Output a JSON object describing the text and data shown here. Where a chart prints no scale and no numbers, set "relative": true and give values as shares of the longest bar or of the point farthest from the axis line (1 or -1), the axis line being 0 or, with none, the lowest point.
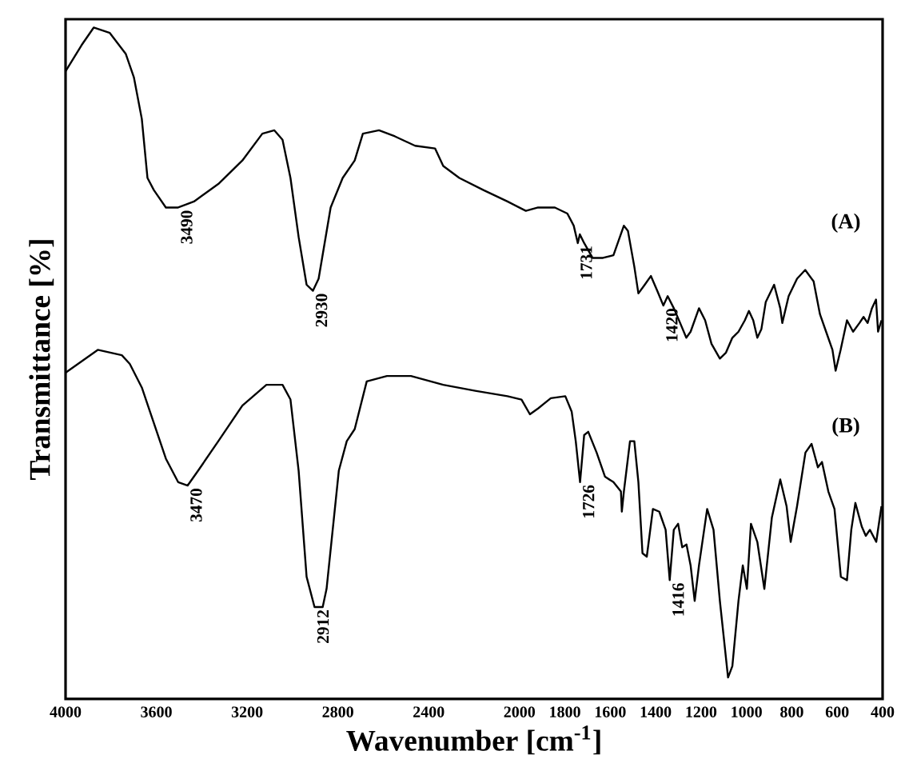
{
  "chart_data": {
    "type": "line",
    "xlabel": "Wavenumber [cm$^{-1}$]",
    "ylabel": "Transmittance [%]",
    "relative": true,
    "xlim": [
      4000,
      400
    ],
    "xticks": [
      4000,
      3600,
      3200,
      2800,
      2400,
      2000,
      1800,
      1600,
      1400,
      1200,
      1000,
      800,
      600,
      400
    ],
    "series": [
      {
        "name": "(A)",
        "color": "#000000",
        "x": [
          4000,
          3929,
          3876,
          3805,
          3735,
          3699,
          3664,
          3639,
          3611,
          3558,
          3504,
          3434,
          3327,
          3221,
          3133,
          3080,
          3044,
          3009,
          2973,
          2938,
          2910,
          2885,
          2832,
          2779,
          2726,
          2690,
          2619,
          2549,
          2460,
          2372,
          2336,
          2265,
          2159,
          2053,
          1972,
          1918,
          1844,
          1789,
          1761,
          1743,
          1734,
          1715,
          1678,
          1632,
          1586,
          1540,
          1522,
          1494,
          1476,
          1448,
          1421,
          1393,
          1366,
          1347,
          1320,
          1292,
          1265,
          1246,
          1209,
          1182,
          1154,
          1117,
          1090,
          1062,
          1035,
          1007,
          989,
          970,
          952,
          934,
          915,
          878,
          851,
          842,
          814,
          777,
          741,
          704,
          676,
          649,
          621,
          607,
          585,
          557,
          530,
          502,
          484,
          466,
          447,
          429,
          420,
          405
        ],
        "values": [
          0.935,
          0.974,
          1,
          0.992,
          0.961,
          0.926,
          0.864,
          0.776,
          0.758,
          0.732,
          0.732,
          0.741,
          0.767,
          0.802,
          0.842,
          0.847,
          0.833,
          0.776,
          0.688,
          0.617,
          0.608,
          0.626,
          0.732,
          0.776,
          0.802,
          0.842,
          0.847,
          0.838,
          0.824,
          0.82,
          0.794,
          0.776,
          0.758,
          0.741,
          0.727,
          0.732,
          0.732,
          0.723,
          0.705,
          0.679,
          0.692,
          0.679,
          0.657,
          0.657,
          0.661,
          0.705,
          0.697,
          0.644,
          0.604,
          0.617,
          0.63,
          0.608,
          0.586,
          0.6,
          0.582,
          0.56,
          0.538,
          0.547,
          0.582,
          0.564,
          0.529,
          0.507,
          0.516,
          0.538,
          0.547,
          0.564,
          0.578,
          0.564,
          0.538,
          0.551,
          0.591,
          0.617,
          0.582,
          0.56,
          0.6,
          0.626,
          0.639,
          0.622,
          0.573,
          0.547,
          0.52,
          0.489,
          0.52,
          0.564,
          0.547,
          0.56,
          0.569,
          0.56,
          0.582,
          0.595,
          0.547,
          0.564
        ]
      },
      {
        "name": "(B)",
        "color": "#000000",
        "x": [
          4000,
          3858,
          3752,
          3717,
          3664,
          3611,
          3558,
          3504,
          3462,
          3416,
          3327,
          3221,
          3115,
          3044,
          3009,
          2973,
          2938,
          2903,
          2867,
          2850,
          2796,
          2761,
          2726,
          2673,
          2584,
          2478,
          2336,
          2195,
          2053,
          1991,
          1954,
          1917,
          1862,
          1798,
          1770,
          1752,
          1733,
          1715,
          1697,
          1660,
          1623,
          1586,
          1553,
          1549,
          1540,
          1513,
          1494,
          1476,
          1458,
          1439,
          1412,
          1384,
          1356,
          1338,
          1320,
          1301,
          1283,
          1264,
          1246,
          1228,
          1209,
          1173,
          1145,
          1117,
          1081,
          1062,
          1035,
          1016,
          998,
          980,
          952,
          921,
          888,
          851,
          823,
          805,
          777,
          740,
          713,
          685,
          667,
          639,
          612,
          584,
          557,
          538,
          520,
          492,
          474,
          456,
          428,
          405
        ],
        "values": [
          0.486,
          0.52,
          0.512,
          0.499,
          0.464,
          0.411,
          0.358,
          0.323,
          0.318,
          0.34,
          0.384,
          0.437,
          0.468,
          0.468,
          0.446,
          0.34,
          0.182,
          0.137,
          0.137,
          0.164,
          0.34,
          0.384,
          0.402,
          0.473,
          0.481,
          0.481,
          0.468,
          0.459,
          0.451,
          0.446,
          0.424,
          0.433,
          0.448,
          0.451,
          0.428,
          0.384,
          0.323,
          0.393,
          0.398,
          0.367,
          0.331,
          0.323,
          0.309,
          0.279,
          0.309,
          0.384,
          0.384,
          0.323,
          0.217,
          0.212,
          0.283,
          0.279,
          0.252,
          0.177,
          0.252,
          0.261,
          0.226,
          0.23,
          0.199,
          0.146,
          0.199,
          0.283,
          0.252,
          0.146,
          0.032,
          0.049,
          0.146,
          0.199,
          0.164,
          0.261,
          0.234,
          0.164,
          0.27,
          0.327,
          0.287,
          0.234,
          0.287,
          0.367,
          0.38,
          0.345,
          0.353,
          0.309,
          0.283,
          0.182,
          0.177,
          0.252,
          0.292,
          0.257,
          0.243,
          0.252,
          0.234,
          0.287
        ]
      }
    ],
    "annotations": [
      {
        "text": "3490",
        "x": 3504,
        "y": 0.732
      },
      {
        "text": "2930",
        "x": 2910,
        "y": 0.608
      },
      {
        "text": "1731",
        "x": 1743,
        "y": 0.679
      },
      {
        "text": "1420",
        "x": 1366,
        "y": 0.586
      },
      {
        "text": "3470",
        "x": 3462,
        "y": 0.318
      },
      {
        "text": "2912",
        "x": 2903,
        "y": 0.137
      },
      {
        "text": "1726",
        "x": 1733,
        "y": 0.323
      },
      {
        "text": "1416",
        "x": 1338,
        "y": 0.177
      }
    ]
  }
}
